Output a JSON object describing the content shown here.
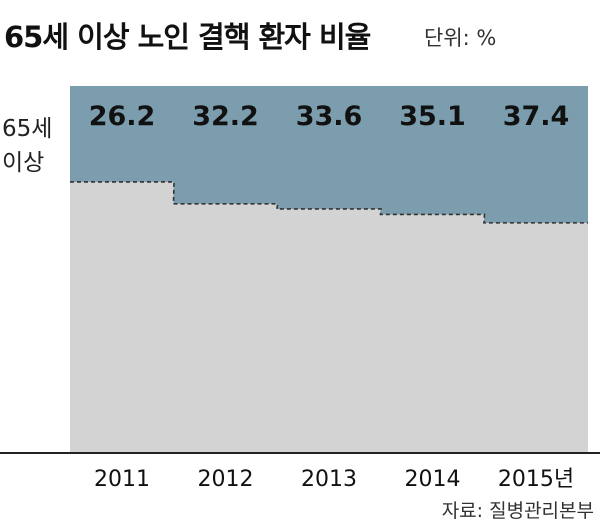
{
  "title": "65세 이상 노인 결핵 환자 비율",
  "unit": "단위: %",
  "source": "자료: 질병관리본부",
  "side_label": [
    "65세",
    "이상"
  ],
  "colors": {
    "top_segment": "#7b9dae",
    "bottom_segment": "#d3d3d3",
    "axis": "#222222",
    "text": "#111111"
  },
  "chart_data": {
    "type": "bar",
    "stacked": true,
    "categories": [
      "2011",
      "2012",
      "2013",
      "2014",
      "2015년"
    ],
    "series": [
      {
        "name": "65세 이상",
        "values": [
          26.2,
          32.2,
          33.6,
          35.1,
          37.4
        ]
      },
      {
        "values": [
          73.8,
          67.8,
          66.4,
          64.9,
          62.6
        ]
      }
    ],
    "ylim": [
      0,
      100
    ],
    "grid": false,
    "connector_lines": "dashed"
  }
}
